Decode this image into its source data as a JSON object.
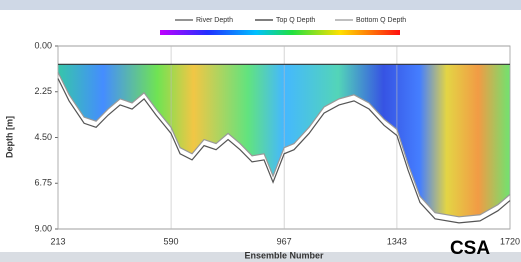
{
  "overlay_label": "CSA",
  "chart_data": {
    "type": "line",
    "y_label": "Depth [m]",
    "x_label": "Ensemble Number",
    "x": [
      213,
      250,
      300,
      340,
      380,
      420,
      460,
      500,
      540,
      590,
      620,
      660,
      700,
      740,
      780,
      820,
      860,
      900,
      930,
      967,
      1000,
      1050,
      1100,
      1150,
      1200,
      1250,
      1300,
      1343,
      1380,
      1420,
      1470,
      1550,
      1620,
      1680,
      1720
    ],
    "series": [
      {
        "name": "River Depth",
        "color": "#555555",
        "values": [
          1.6,
          2.7,
          3.8,
          4.0,
          3.4,
          2.9,
          3.1,
          2.6,
          3.4,
          4.3,
          5.3,
          5.6,
          4.9,
          5.1,
          4.6,
          5.1,
          5.7,
          5.6,
          6.7,
          5.3,
          5.1,
          4.3,
          3.3,
          2.9,
          2.7,
          3.1,
          3.9,
          4.4,
          6.1,
          7.7,
          8.5,
          8.7,
          8.6,
          8.1,
          7.6
        ]
      },
      {
        "name": "Top Q Depth",
        "color": "#333333",
        "values": [
          0.9,
          0.9,
          0.9,
          0.9,
          0.9,
          0.9,
          0.9,
          0.9,
          0.9,
          0.9,
          0.9,
          0.9,
          0.9,
          0.9,
          0.9,
          0.9,
          0.9,
          0.9,
          0.9,
          0.9,
          0.9,
          0.9,
          0.9,
          0.9,
          0.9,
          0.9,
          0.9,
          0.9,
          0.9,
          0.9,
          0.9,
          0.9,
          0.9,
          0.9,
          0.9
        ]
      },
      {
        "name": "Bottom Q Depth",
        "color": "#999999",
        "values": [
          1.3,
          2.4,
          3.5,
          3.7,
          3.1,
          2.6,
          2.8,
          2.3,
          3.1,
          4.0,
          5.0,
          5.3,
          4.6,
          4.8,
          4.3,
          4.8,
          5.4,
          5.3,
          6.4,
          5.0,
          4.8,
          4.0,
          3.0,
          2.6,
          2.4,
          2.8,
          3.6,
          4.1,
          5.8,
          7.4,
          8.2,
          8.4,
          8.3,
          7.8,
          7.3
        ]
      }
    ],
    "xlim": [
      213,
      1720
    ],
    "xticks": [
      213,
      590,
      967,
      1343,
      1720
    ],
    "ylim": [
      0,
      9
    ],
    "yreversed": true,
    "yticks": [
      {
        "value": 0,
        "label": "0.00"
      },
      2.25,
      {
        "value": 4.5,
        "label": "4.50"
      },
      6.75,
      {
        "value": 9,
        "label": "9.00"
      }
    ],
    "grid": "x"
  }
}
